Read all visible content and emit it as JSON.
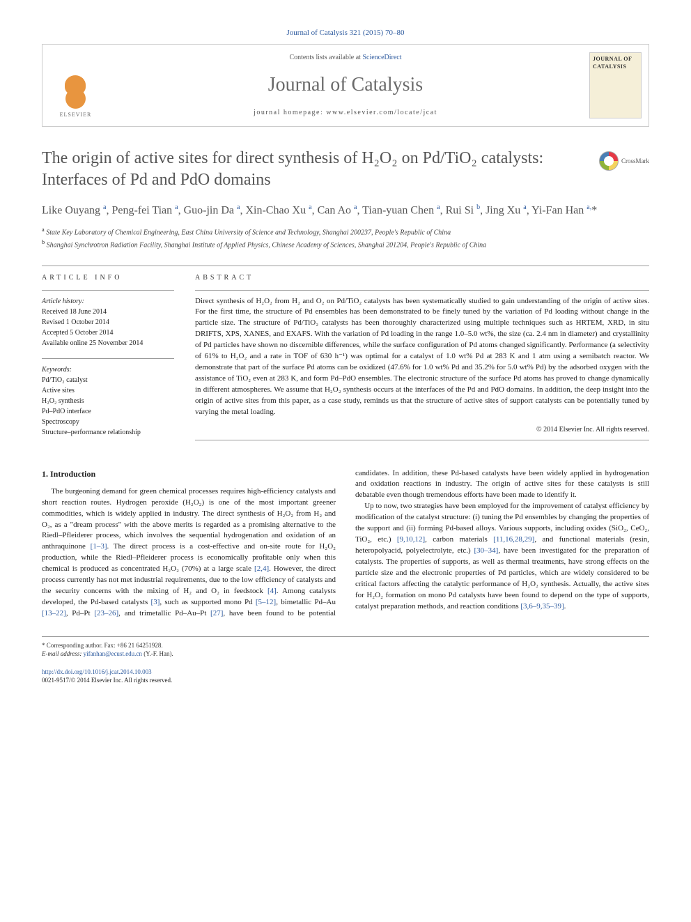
{
  "top_reference": "Journal of Catalysis 321 (2015) 70–80",
  "header": {
    "contents_prefix": "Contents lists available at ",
    "contents_link": "ScienceDirect",
    "journal_name": "Journal of Catalysis",
    "homepage_prefix": "journal homepage: ",
    "homepage_url": "www.elsevier.com/locate/jcat",
    "publisher": "ELSEVIER",
    "cover_title": "JOURNAL OF CATALYSIS"
  },
  "crossmark": "CrossMark",
  "article": {
    "title": "The origin of active sites for direct synthesis of H₂O₂ on Pd/TiO₂ catalysts: Interfaces of Pd and PdO domains",
    "authors_html": "Like Ouyang <sup>a</sup>, Peng-fei Tian <sup>a</sup>, Guo-jin Da <sup>a</sup>, Xin-Chao Xu <sup>a</sup>, Can Ao <sup>a</sup>, Tian-yuan Chen <sup>a</sup>, Rui Si <sup>b</sup>, Jing Xu <sup>a</sup>, Yi-Fan Han <sup>a,</sup>*",
    "affiliations": {
      "a": "State Key Laboratory of Chemical Engineering, East China University of Science and Technology, Shanghai 200237, People's Republic of China",
      "b": "Shanghai Synchrotron Radiation Facility, Shanghai Institute of Applied Physics, Chinese Academy of Sciences, Shanghai 201204, People's Republic of China"
    }
  },
  "article_info": {
    "header": "ARTICLE INFO",
    "history_label": "Article history:",
    "history": [
      "Received 18 June 2014",
      "Revised 1 October 2014",
      "Accepted 5 October 2014",
      "Available online 25 November 2014"
    ],
    "keywords_label": "Keywords:",
    "keywords": [
      "Pd/TiO₂ catalyst",
      "Active sites",
      "H₂O₂ synthesis",
      "Pd–PdO interface",
      "Spectroscopy",
      "Structure–performance relationship"
    ]
  },
  "abstract": {
    "header": "ABSTRACT",
    "text": "Direct synthesis of H₂O₂ from H₂ and O₂ on Pd/TiO₂ catalysts has been systematically studied to gain understanding of the origin of active sites. For the first time, the structure of Pd ensembles has been demonstrated to be finely tuned by the variation of Pd loading without change in the particle size. The structure of Pd/TiO₂ catalysts has been thoroughly characterized using multiple techniques such as HRTEM, XRD, in situ DRIFTS, XPS, XANES, and EXAFS. With the variation of Pd loading in the range 1.0–5.0 wt%, the size (ca. 2.4 nm in diameter) and crystallinity of Pd particles have shown no discernible differences, while the surface configuration of Pd atoms changed significantly. Performance (a selectivity of 61% to H₂O₂ and a rate in TOF of 630 h⁻¹) was optimal for a catalyst of 1.0 wt% Pd at 283 K and 1 atm using a semibatch reactor. We demonstrate that part of the surface Pd atoms can be oxidized (47.6% for 1.0 wt% Pd and 35.2% for 5.0 wt% Pd) by the adsorbed oxygen with the assistance of TiO₂ even at 283 K, and form Pd–PdO ensembles. The electronic structure of the surface Pd atoms has proved to change dynamically in different atmospheres. We assume that H₂O₂ synthesis occurs at the interfaces of the Pd and PdO domains. In addition, the deep insight into the origin of active sites from this paper, as a case study, reminds us that the structure of active sites of support catalysts can be potentially tuned by varying the metal loading.",
    "copyright": "© 2014 Elsevier Inc. All rights reserved."
  },
  "body": {
    "section_title": "1. Introduction",
    "col1_p1": "The burgeoning demand for green chemical processes requires high-efficiency catalysts and short reaction routes. Hydrogen peroxide (H₂O₂) is one of the most important greener commodities, which is widely applied in industry. The direct synthesis of H₂O₂ from H₂ and O₂, as a \"dream process\" with the above merits is regarded as a promising alternative to the Riedl–Pfleiderer process, which involves the sequential hydrogenation and oxidation of an anthraquinone ",
    "ref_1": "[1–3]",
    "col1_p1b": ". The direct process is a cost-effective and on-site route for H₂O₂ production, while the Riedl–Pfleiderer process is economically profitable only when this chemical is produced as concentrated H₂O₂ (70%) at a large scale ",
    "ref_2": "[2,4]",
    "col1_p1c": ". However, the direct process currently has not met industrial requirements, due to the low efficiency of catalysts and the security concerns with the mixing of H₂ and O₂ in feedstock ",
    "ref_3": "[4]",
    "col1_p1d": ". Among catalysts developed, the Pd-based catalysts ",
    "ref_4": "[3]",
    "col1_p1e": ", such as supported mono Pd ",
    "ref_5": "[5–12]",
    "col2_p1": ", bimetallic Pd–Au ",
    "ref_6": "[13–22]",
    "col2_p1b": ", Pd–Pt ",
    "ref_7": "[23–26]",
    "col2_p1c": ", and trimetallic Pd–Au–Pt ",
    "ref_8": "[27]",
    "col2_p1d": ", have been found to be potential candidates. In addition, these Pd-based catalysts have been widely applied in hydrogenation and oxidation reactions in industry. The origin of active sites for these catalysts is still debatable even though tremendous efforts have been made to identify it.",
    "col2_p2a": "Up to now, two strategies have been employed for the improvement of catalyst efficiency by modification of the catalyst structure: (i) tuning the Pd ensembles by changing the properties of the support and (ii) forming Pd-based alloys. Various supports, including oxides (SiO₂, CeO₂, TiO₂, etc.) ",
    "ref_9": "[9,10,12]",
    "col2_p2b": ", carbon materials ",
    "ref_10": "[11,16,28,29]",
    "col2_p2c": ", and functional materials (resin, heteropolyacid, polyelectrolyte, etc.) ",
    "ref_11": "[30–34]",
    "col2_p2d": ", have been investigated for the preparation of catalysts. The properties of supports, as well as thermal treatments, have strong effects on the particle size and the electronic properties of Pd particles, which are widely considered to be critical factors affecting the catalytic performance of H₂O₂ synthesis. Actually, the active sites for H₂O₂ formation on mono Pd catalysts have been found to depend on the type of supports, catalyst preparation methods, and reaction conditions ",
    "ref_12": "[3,6–9,35–39]",
    "col2_p2e": "."
  },
  "footer": {
    "corresponding": "* Corresponding author. Fax: +86 21 64251928.",
    "email_label": "E-mail address: ",
    "email": "yifanhan@ecust.edu.cn",
    "email_suffix": " (Y.-F. Han).",
    "doi_url": "http://dx.doi.org/10.1016/j.jcat.2014.10.003",
    "issn": "0021-9517/© 2014 Elsevier Inc. All rights reserved."
  },
  "colors": {
    "link": "#2d5a9e",
    "heading_gray": "#555555",
    "elsevier_orange": "#e8953f"
  }
}
